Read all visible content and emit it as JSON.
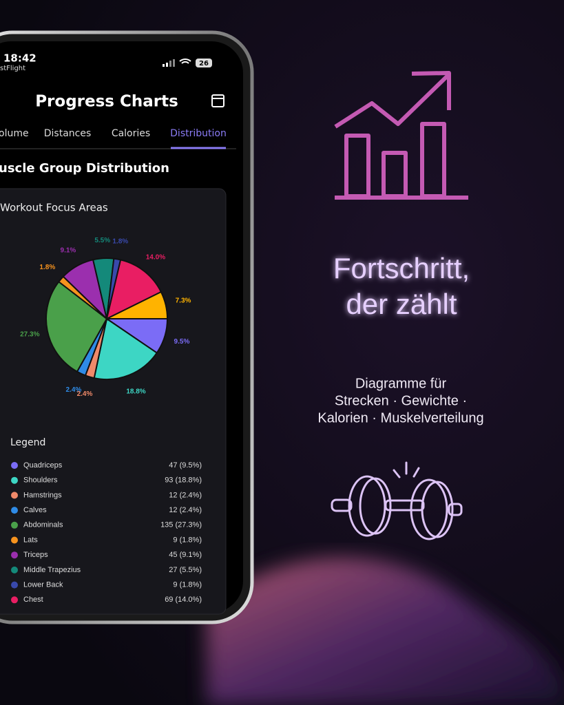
{
  "status": {
    "time": "18:42",
    "carrier": "stFlight",
    "battery": "26"
  },
  "header": {
    "title": "Progress Charts"
  },
  "tabs": [
    "olume",
    "Distances",
    "Calories",
    "Distribution"
  ],
  "section_title": "uscle Group Distribution",
  "chart_data": {
    "type": "pie",
    "title": "Workout Focus Areas",
    "categories": [
      "Quadriceps",
      "Shoulders",
      "Hamstrings",
      "Calves",
      "Abdominals",
      "Lats",
      "Triceps",
      "Middle Trapezius",
      "Lower Back",
      "Chest",
      null
    ],
    "values": [
      9.5,
      18.8,
      2.4,
      2.4,
      27.3,
      1.8,
      9.1,
      5.5,
      1.8,
      14.0,
      7.3
    ],
    "value_labels": [
      "9.5%",
      "18.8%",
      "2.4%",
      "2.4%",
      "27.3%",
      "1.8%",
      "9.1%",
      "5.5%",
      "1.8%",
      "14.0%",
      "7.3%"
    ],
    "colors": [
      "#7b6cf6",
      "#3dd6c4",
      "#f08a6a",
      "#2f8be6",
      "#4aa04a",
      "#f7931e",
      "#9b2fae",
      "#14897a",
      "#3949ab",
      "#e91e63",
      "#ffb300"
    ]
  },
  "legend": {
    "title": "Legend",
    "items": [
      "47 (9.5%)",
      "93 (18.8%)",
      "12 (2.4%)",
      "12 (2.4%)",
      "135 (27.3%)",
      "9 (1.8%)",
      "45 (9.1%)",
      "27 (5.5%)",
      "9 (1.8%)",
      "69 (14.0%)"
    ]
  },
  "promo": {
    "headline": [
      "Fortschritt,",
      "der zählt"
    ],
    "subtitle": [
      "Diagramme für",
      "Strecken · Gewichte ·",
      "Kalorien · Muskelverteilung"
    ]
  }
}
